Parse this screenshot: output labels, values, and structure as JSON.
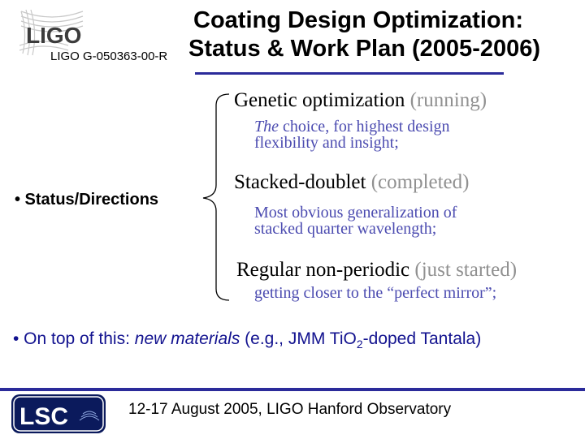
{
  "header": {
    "logo_text": "LIGO",
    "doc_id": "LIGO G-050363-00-R",
    "title_line1": "Coating Design Optimization:",
    "title_line2": "Status & Work Plan (2005-2006)",
    "rule_color": "#2b2b9a"
  },
  "status_label": "• Status/Directions",
  "items": [
    {
      "title": "Genetic optimization",
      "status": "(running)",
      "desc_em": "The",
      "desc_line1": " choice, for highest design",
      "desc_line2": "flexibility and insight;"
    },
    {
      "title": "Stacked-doublet",
      "status": "(completed)",
      "desc_line1": "Most obvious generalization of",
      "desc_line2": "stacked quarter wavelength;"
    },
    {
      "title": "Regular non-periodic",
      "status": "(just started)",
      "desc_line1": "getting closer to the “perfect mirror”;"
    }
  ],
  "on_top": {
    "prefix": "• On top of this: ",
    "emph": "new materials",
    "middle": " (e.g., JMM Ti",
    "chem": "O",
    "subscript": "2",
    "suffix": "-doped Tantala)"
  },
  "footer": {
    "logo_text": "LSC",
    "text": "12-17 August 2005, LIGO Hanford Observatory"
  },
  "colors": {
    "accent_blue": "#4b4bb0",
    "dark_blue": "#12128f",
    "status_gray": "#909090"
  }
}
